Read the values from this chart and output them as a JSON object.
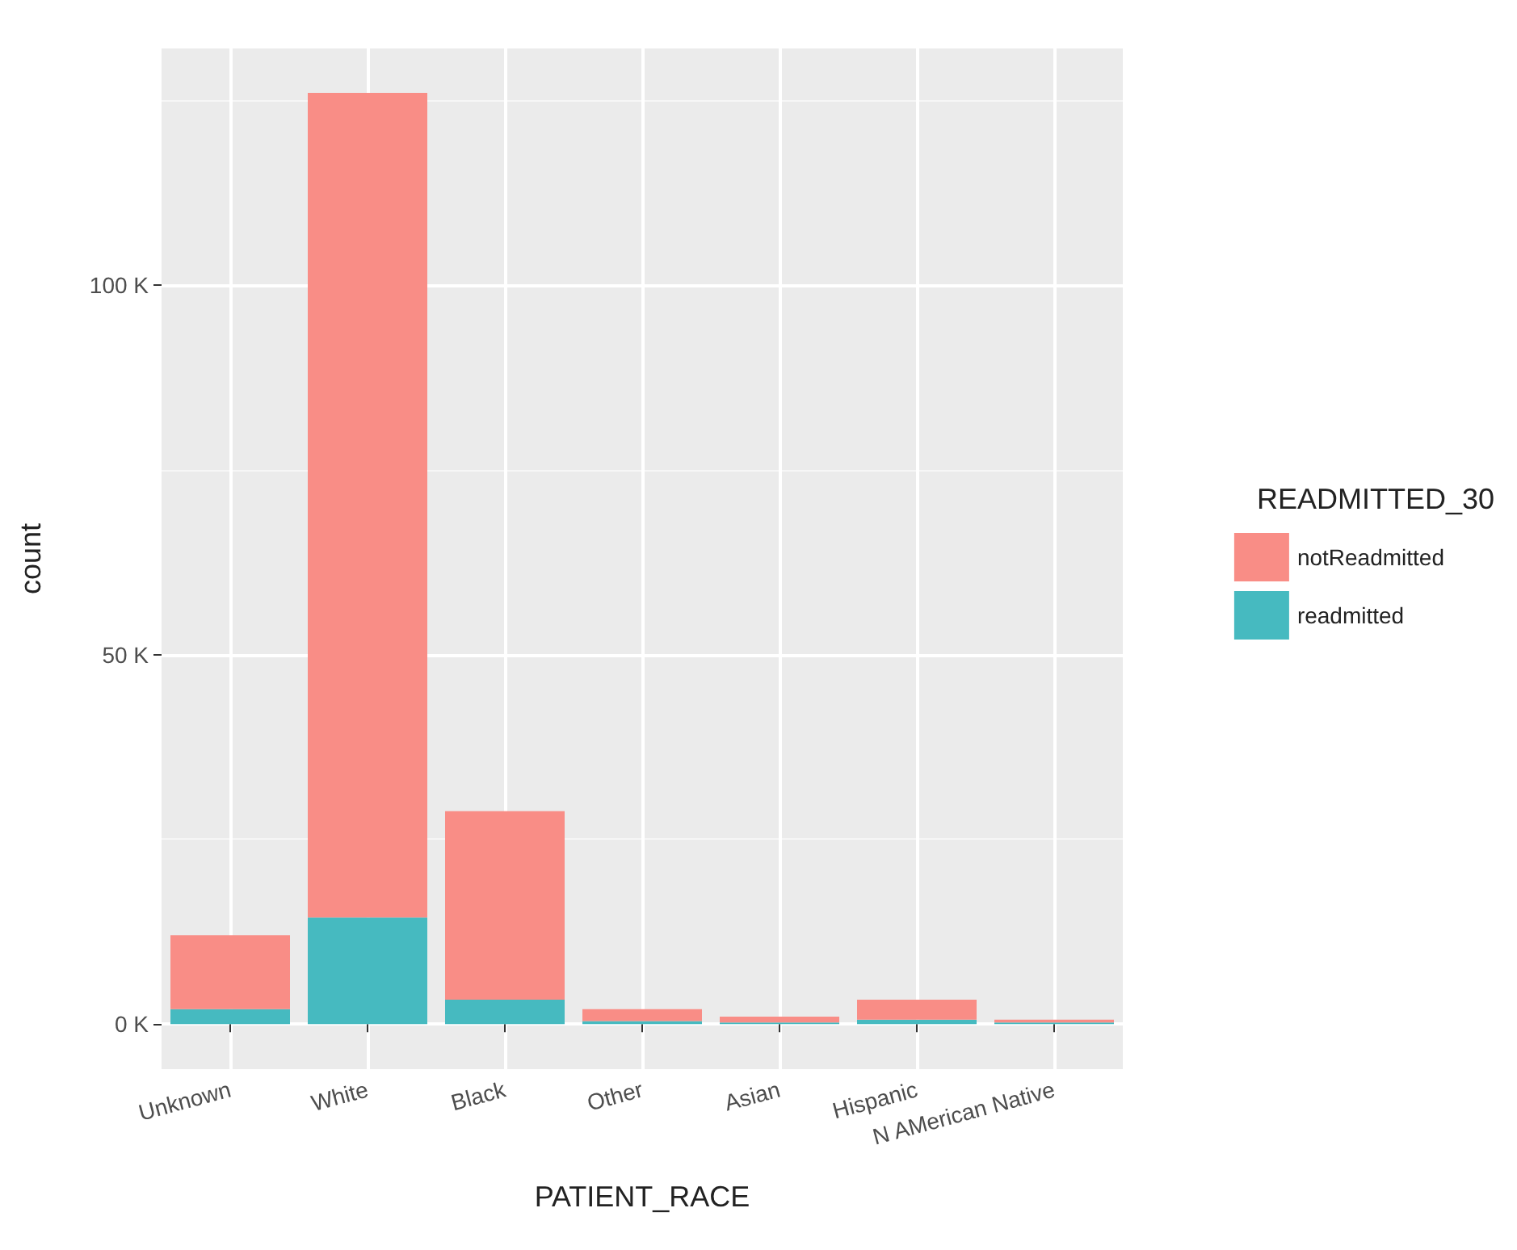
{
  "chart_data": {
    "type": "bar",
    "stacked": true,
    "xlabel": "PATIENT_RACE",
    "ylabel": "count",
    "legend_title": "READMITTED_30",
    "legend": "right",
    "categories": [
      "Unknown",
      "White",
      "Black",
      "Other",
      "Asian",
      "Hispanic",
      "N AMerican Native"
    ],
    "series": [
      {
        "name": "readmitted",
        "color": "#46bac0",
        "values": [
          2000,
          14400,
          3300,
          400,
          200,
          600,
          200
        ]
      },
      {
        "name": "notReadmitted",
        "color": "#f98d86",
        "values": [
          10000,
          111600,
          25500,
          1600,
          800,
          2700,
          400
        ]
      }
    ],
    "ylim": [
      -6100,
      132000
    ],
    "yticks": [
      {
        "value": 0,
        "label": "0 K"
      },
      {
        "value": 25000,
        "label": null
      },
      {
        "value": 50000,
        "label": "50 K"
      },
      {
        "value": 75000,
        "label": null
      },
      {
        "value": 100000,
        "label": "100 K"
      },
      {
        "value": 125000,
        "label": null
      }
    ],
    "grid": true
  }
}
